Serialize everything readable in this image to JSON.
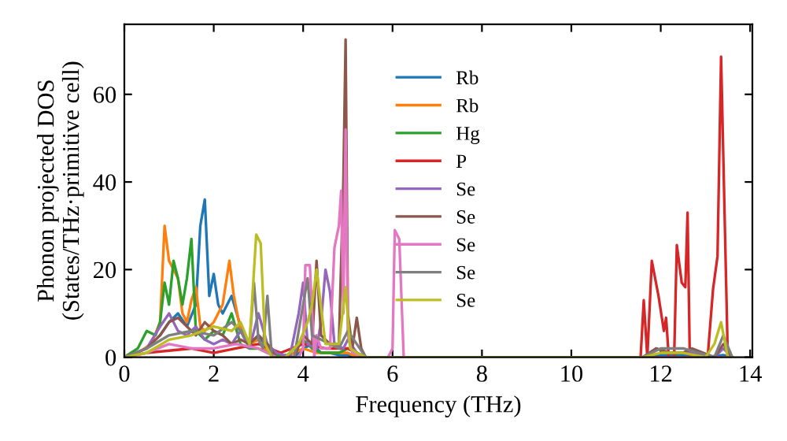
{
  "chart_data": {
    "type": "line",
    "xlabel": "Frequency (THz)",
    "ylabel": "Phonon projected DOS\n(States/THz·primitive cell)",
    "xlim": [
      0,
      14.05
    ],
    "ylim": [
      0,
      76
    ],
    "xticks": [
      0,
      2,
      4,
      6,
      8,
      10,
      12,
      14
    ],
    "yticks": [
      0,
      20,
      40,
      60
    ],
    "grid": false,
    "legend": "center",
    "series": [
      {
        "name": "Rb",
        "color": "#1f77b4",
        "x": [
          0.8,
          1.0,
          1.2,
          1.4,
          1.6,
          1.7,
          1.8,
          1.9,
          2.0,
          2.1,
          2.2,
          2.4,
          2.6,
          2.8,
          3.0,
          3.2,
          3.4,
          3.6,
          3.8,
          4.0,
          4.2,
          4.4,
          4.6,
          4.8,
          5.0,
          5.2,
          5.4,
          11.6,
          12.0,
          12.5,
          13.0,
          13.4,
          13.6
        ],
        "values": [
          5,
          8,
          10,
          7,
          12,
          30,
          36,
          14,
          19,
          12,
          10,
          14,
          7,
          3,
          5,
          2,
          0,
          0.5,
          0,
          2,
          3,
          1,
          1,
          0.5,
          0.5,
          0,
          0,
          0,
          0.5,
          0.5,
          0,
          0.5,
          0
        ]
      },
      {
        "name": "Rb",
        "color": "#ff7f0e",
        "x": [
          0,
          0.3,
          0.6,
          0.8,
          0.9,
          1.0,
          1.1,
          1.2,
          1.3,
          1.4,
          1.5,
          1.6,
          1.7,
          1.8,
          2.0,
          2.2,
          2.35,
          2.45,
          2.6,
          2.8,
          3.0,
          3.2,
          3.4,
          3.6,
          4.0,
          4.3,
          4.6,
          5.0,
          5.2,
          5.4,
          13.6
        ],
        "values": [
          0,
          1,
          3,
          8,
          30,
          22,
          20,
          18,
          10,
          8,
          13,
          16,
          7,
          6,
          8,
          12,
          22,
          14,
          6,
          3,
          4,
          1,
          1,
          0,
          2,
          1,
          1,
          1,
          0,
          0,
          0
        ]
      },
      {
        "name": "Hg",
        "color": "#2ca02c",
        "x": [
          0,
          0.3,
          0.5,
          0.7,
          0.8,
          0.9,
          1.0,
          1.1,
          1.2,
          1.3,
          1.4,
          1.5,
          1.6,
          1.8,
          2.0,
          2.2,
          2.4,
          2.6,
          2.8,
          3.0,
          3.2,
          3.6,
          4.0,
          4.2,
          4.4,
          4.8,
          5.0,
          5.2
        ],
        "values": [
          0,
          2,
          6,
          5,
          8,
          17,
          12,
          22,
          18,
          12,
          18,
          27,
          6,
          4,
          6,
          5,
          10,
          3,
          2,
          2,
          1,
          0,
          4,
          2,
          1,
          1,
          2,
          1
        ]
      },
      {
        "name": "P",
        "color": "#d62728",
        "x": [
          0,
          0.5,
          1.0,
          1.5,
          2.0,
          2.5,
          3.0,
          3.5,
          4.0,
          4.5,
          5.0,
          5.4,
          11.55,
          11.62,
          11.7,
          11.8,
          11.95,
          12.07,
          12.12,
          12.18,
          12.3,
          12.36,
          12.47,
          12.55,
          12.6,
          12.65,
          13.05,
          13.17,
          13.27,
          13.35,
          13.5,
          13.6
        ],
        "values": [
          0,
          1,
          1.5,
          2,
          1,
          2,
          3,
          1,
          3,
          2,
          2,
          0,
          0,
          13,
          0,
          22,
          14,
          6,
          9,
          0,
          0,
          25.6,
          17,
          16,
          33,
          0,
          0,
          15.5,
          23,
          68.6,
          0,
          0
        ]
      },
      {
        "name": "Se",
        "color": "#9467bd",
        "x": [
          0,
          0.5,
          0.8,
          1.0,
          1.2,
          1.4,
          1.6,
          1.8,
          2.0,
          2.2,
          2.4,
          2.6,
          2.8,
          3.0,
          3.2,
          3.4,
          3.7,
          3.9,
          4.0,
          4.1,
          4.3,
          4.4,
          4.5,
          4.6,
          4.7,
          4.9,
          5.0,
          5.2,
          5.4,
          11.6,
          11.9,
          12.2,
          12.5,
          12.7,
          13.2,
          13.4,
          13.6
        ],
        "values": [
          0,
          2,
          7,
          10,
          6,
          5,
          7,
          4,
          3,
          4,
          3,
          6,
          2,
          10,
          3,
          1,
          0,
          10,
          17,
          3,
          2,
          8,
          20,
          15,
          3,
          2,
          4,
          1,
          0,
          0,
          2,
          1,
          1,
          1,
          0,
          2,
          0
        ]
      },
      {
        "name": "Se",
        "color": "#8c564b",
        "x": [
          0,
          0.5,
          0.8,
          1.0,
          1.2,
          1.4,
          1.6,
          1.8,
          2.0,
          2.2,
          2.4,
          2.6,
          2.8,
          3.0,
          3.2,
          3.4,
          3.8,
          4.0,
          4.2,
          4.3,
          4.4,
          4.6,
          4.8,
          4.9,
          4.95,
          5.0,
          5.1,
          5.2,
          5.3,
          5.4,
          11.6,
          11.9,
          12.2,
          12.5,
          12.7,
          13.2,
          13.4,
          13.6
        ],
        "values": [
          0,
          2,
          5,
          8,
          9,
          7,
          5,
          8,
          6,
          5,
          3,
          4,
          3,
          5,
          3,
          0,
          0,
          5,
          3,
          22,
          5,
          3,
          3,
          40,
          72.5,
          10,
          2,
          9,
          2,
          0,
          0,
          2,
          1,
          1,
          2,
          0,
          3,
          0
        ]
      },
      {
        "name": "Se",
        "color": "#e377c2",
        "x": [
          0,
          0.5,
          1.0,
          1.5,
          2.0,
          2.5,
          3.0,
          3.4,
          3.9,
          4.0,
          4.05,
          4.15,
          4.25,
          4.3,
          4.4,
          4.6,
          4.7,
          4.8,
          4.85,
          4.9,
          4.95,
          5.0,
          5.1,
          5.4,
          5.9,
          6.0,
          6.05,
          6.15,
          6.25,
          6.35,
          13.6
        ],
        "values": [
          0,
          1,
          3,
          2,
          2,
          3,
          2,
          0,
          0,
          2,
          21,
          21,
          0,
          5,
          2,
          2,
          25,
          30,
          38,
          10,
          52,
          5,
          1,
          0,
          0,
          2,
          29,
          27,
          0,
          0,
          0
        ]
      },
      {
        "name": "Se",
        "color": "#7f7f7f",
        "x": [
          0,
          0.5,
          1.0,
          1.5,
          2.0,
          2.4,
          2.6,
          2.8,
          2.9,
          3.0,
          3.1,
          3.2,
          3.3,
          3.4,
          3.8,
          4.0,
          4.1,
          4.2,
          4.4,
          4.6,
          4.8,
          5.0,
          5.2,
          5.4,
          11.6,
          12.0,
          12.5,
          13.2,
          13.4,
          13.6
        ],
        "values": [
          0,
          2,
          5,
          6,
          5,
          8,
          6,
          3,
          17,
          4,
          2,
          14,
          0,
          0,
          0,
          12,
          18,
          5,
          4,
          3,
          2,
          6,
          3,
          0,
          0,
          2,
          2,
          0,
          5,
          0
        ]
      },
      {
        "name": "Se",
        "color": "#bcbd22",
        "x": [
          0,
          0.5,
          1.0,
          1.5,
          2.0,
          2.4,
          2.6,
          2.8,
          2.95,
          3.05,
          3.15,
          3.3,
          3.6,
          3.9,
          4.1,
          4.2,
          4.3,
          4.5,
          4.8,
          4.95,
          5.05,
          5.2,
          5.4,
          11.6,
          12.0,
          12.5,
          13.0,
          13.2,
          13.35,
          13.5,
          13.6
        ],
        "values": [
          0,
          1,
          4,
          5,
          7,
          6,
          8,
          3,
          28,
          26,
          3,
          0,
          0,
          3,
          8,
          12,
          20,
          3,
          3,
          16,
          2,
          1,
          0,
          0,
          1,
          1,
          0,
          3,
          8,
          0,
          0
        ]
      }
    ]
  }
}
